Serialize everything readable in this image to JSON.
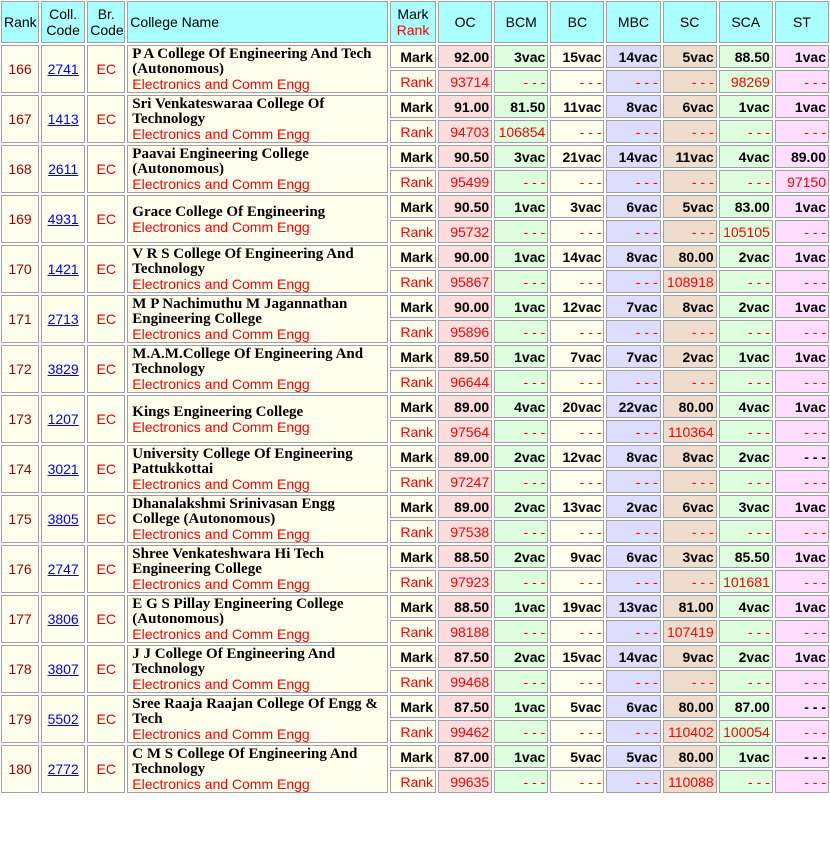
{
  "header": {
    "rank": "Rank",
    "coll_code": "Coll. Code",
    "br_code": "Br. Code",
    "college_name": "College Name",
    "mark_label": "Mark",
    "rank_label": "Rank",
    "categories": [
      "OC",
      "BCM",
      "BC",
      "MBC",
      "SC",
      "SCA",
      "ST"
    ]
  },
  "labels": {
    "mark": "Mark",
    "rank": "Rank"
  },
  "colors": {
    "header": "#aaffff",
    "OC": "#ffdddd",
    "BCM": "#ddffdd",
    "BC": "#ffffee",
    "MBC": "#ddddff",
    "SC": "#eeddcc",
    "SCA": "#ddffdd",
    "ST": "#ffddff"
  },
  "rows": [
    {
      "rank": "166",
      "code": "2741",
      "branch": "EC",
      "name": "P A College Of Engineering And Tech (Autonomous)",
      "course": "Electronics and Comm Engg",
      "marks": [
        "92.00",
        "3vac",
        "15vac",
        "14vac",
        "5vac",
        "88.50",
        "1vac"
      ],
      "ranks": [
        "93714",
        "- - -",
        "- - -",
        "- - -",
        "- - -",
        "98269",
        "- - -"
      ]
    },
    {
      "rank": "167",
      "code": "1413",
      "branch": "EC",
      "name": "Sri Venkateswaraa College Of Technology",
      "course": "Electronics and Comm Engg",
      "marks": [
        "91.00",
        "81.50",
        "11vac",
        "8vac",
        "6vac",
        "1vac",
        "1vac"
      ],
      "ranks": [
        "94703",
        "106854",
        "- - -",
        "- - -",
        "- - -",
        "- - -",
        "- - -"
      ]
    },
    {
      "rank": "168",
      "code": "2611",
      "branch": "EC",
      "name": "Paavai Engineering College (Autonomous)",
      "course": "Electronics and Comm Engg",
      "marks": [
        "90.50",
        "3vac",
        "21vac",
        "14vac",
        "11vac",
        "4vac",
        "89.00"
      ],
      "ranks": [
        "95499",
        "- - -",
        "- - -",
        "- - -",
        "- - -",
        "- - -",
        "97150"
      ]
    },
    {
      "rank": "169",
      "code": "4931",
      "branch": "EC",
      "name": "Grace College Of Engineering",
      "course": "Electronics and Comm Engg",
      "marks": [
        "90.50",
        "1vac",
        "3vac",
        "6vac",
        "5vac",
        "83.00",
        "1vac"
      ],
      "ranks": [
        "95732",
        "- - -",
        "- - -",
        "- - -",
        "- - -",
        "105105",
        "- - -"
      ]
    },
    {
      "rank": "170",
      "code": "1421",
      "branch": "EC",
      "name": "V R S College Of Engineering And Technology",
      "course": "Electronics and Comm Engg",
      "marks": [
        "90.00",
        "1vac",
        "14vac",
        "8vac",
        "80.00",
        "2vac",
        "1vac"
      ],
      "ranks": [
        "95867",
        "- - -",
        "- - -",
        "- - -",
        "108918",
        "- - -",
        "- - -"
      ]
    },
    {
      "rank": "171",
      "code": "2713",
      "branch": "EC",
      "name": "M P Nachimuthu M Jagannathan Engineering College",
      "course": "Electronics and Comm Engg",
      "marks": [
        "90.00",
        "1vac",
        "12vac",
        "7vac",
        "8vac",
        "2vac",
        "1vac"
      ],
      "ranks": [
        "95896",
        "- - -",
        "- - -",
        "- - -",
        "- - -",
        "- - -",
        "- - -"
      ]
    },
    {
      "rank": "172",
      "code": "3829",
      "branch": "EC",
      "name": "M.A.M.College Of Engineering And Technology",
      "course": "Electronics and Comm Engg",
      "marks": [
        "89.50",
        "1vac",
        "7vac",
        "7vac",
        "2vac",
        "1vac",
        "1vac"
      ],
      "ranks": [
        "96644",
        "- - -",
        "- - -",
        "- - -",
        "- - -",
        "- - -",
        "- - -"
      ]
    },
    {
      "rank": "173",
      "code": "1207",
      "branch": "EC",
      "name": "Kings Engineering College",
      "course": "Electronics and Comm Engg",
      "marks": [
        "89.00",
        "4vac",
        "20vac",
        "22vac",
        "80.00",
        "4vac",
        "1vac"
      ],
      "ranks": [
        "97564",
        "- - -",
        "- - -",
        "- - -",
        "110364",
        "- - -",
        "- - -"
      ]
    },
    {
      "rank": "174",
      "code": "3021",
      "branch": "EC",
      "name": "University College Of Engineering Pattukkottai",
      "course": "Electronics and Comm Engg",
      "marks": [
        "89.00",
        "2vac",
        "12vac",
        "8vac",
        "8vac",
        "2vac",
        "- - -"
      ],
      "ranks": [
        "97247",
        "- - -",
        "- - -",
        "- - -",
        "- - -",
        "- - -",
        "- - -"
      ]
    },
    {
      "rank": "175",
      "code": "3805",
      "branch": "EC",
      "name": "Dhanalakshmi Srinivasan Engg College (Autonomous)",
      "course": "Electronics and Comm Engg",
      "marks": [
        "89.00",
        "2vac",
        "13vac",
        "2vac",
        "6vac",
        "3vac",
        "1vac"
      ],
      "ranks": [
        "97538",
        "- - -",
        "- - -",
        "- - -",
        "- - -",
        "- - -",
        "- - -"
      ]
    },
    {
      "rank": "176",
      "code": "2747",
      "branch": "EC",
      "name": "Shree Venkateshwara Hi Tech Engineering College",
      "course": "Electronics and Comm Engg",
      "marks": [
        "88.50",
        "2vac",
        "9vac",
        "6vac",
        "3vac",
        "85.50",
        "1vac"
      ],
      "ranks": [
        "97923",
        "- - -",
        "- - -",
        "- - -",
        "- - -",
        "101681",
        "- - -"
      ]
    },
    {
      "rank": "177",
      "code": "3806",
      "branch": "EC",
      "name": "E G S Pillay Engineering College (Autonomous)",
      "course": "Electronics and Comm Engg",
      "marks": [
        "88.50",
        "1vac",
        "19vac",
        "13vac",
        "81.00",
        "4vac",
        "1vac"
      ],
      "ranks": [
        "98188",
        "- - -",
        "- - -",
        "- - -",
        "107419",
        "- - -",
        "- - -"
      ]
    },
    {
      "rank": "178",
      "code": "3807",
      "branch": "EC",
      "name": "J J College Of Engineering And Technology",
      "course": "Electronics and Comm Engg",
      "marks": [
        "87.50",
        "2vac",
        "15vac",
        "14vac",
        "9vac",
        "2vac",
        "1vac"
      ],
      "ranks": [
        "99468",
        "- - -",
        "- - -",
        "- - -",
        "- - -",
        "- - -",
        "- - -"
      ]
    },
    {
      "rank": "179",
      "code": "5502",
      "branch": "EC",
      "name": "Sree Raaja Raajan College Of Engg & Tech",
      "course": "Electronics and Comm Engg",
      "marks": [
        "87.50",
        "1vac",
        "5vac",
        "6vac",
        "80.00",
        "87.00",
        "- - -"
      ],
      "ranks": [
        "99462",
        "- - -",
        "- - -",
        "- - -",
        "110402",
        "100054",
        "- - -"
      ]
    },
    {
      "rank": "180",
      "code": "2772",
      "branch": "EC",
      "name": "C M S College Of Engineering And Technology",
      "course": "Electronics and Comm Engg",
      "marks": [
        "87.00",
        "1vac",
        "5vac",
        "5vac",
        "80.00",
        "1vac",
        "- - -"
      ],
      "ranks": [
        "99635",
        "- - -",
        "- - -",
        "- - -",
        "110088",
        "- - -",
        "- - -"
      ]
    }
  ]
}
